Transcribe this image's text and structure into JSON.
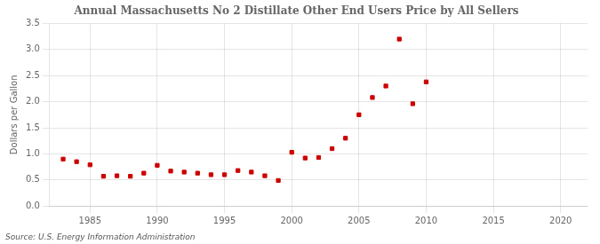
{
  "chart_data": {
    "type": "scatter",
    "title": "Annual Massachusetts No 2 Distillate Other End Users Price by All Sellers",
    "ylabel": "Dollars per Gallon",
    "annotation": "Source: U.S. Energy Information Administration",
    "color": "#cc0000",
    "marker": "square",
    "grid": true,
    "xlim": [
      1982,
      2022
    ],
    "ylim": [
      0.0,
      3.5
    ],
    "xticks": [
      1985,
      1990,
      1995,
      2000,
      2005,
      2010,
      2015,
      2020
    ],
    "yticks": [
      {
        "value": 0.0,
        "label": "0.0"
      },
      0.5,
      {
        "value": 1.0,
        "label": "1.0"
      },
      1.5,
      {
        "value": 2.0,
        "label": "2.0"
      },
      2.5,
      {
        "value": 3.0,
        "label": "3.0"
      },
      3.5
    ],
    "x": [
      1983,
      1984,
      1985,
      1986,
      1987,
      1988,
      1989,
      1990,
      1991,
      1992,
      1993,
      1994,
      1995,
      1996,
      1997,
      1998,
      1999,
      2000,
      2001,
      2002,
      2003,
      2004,
      2005,
      2006,
      2007,
      2008,
      2009,
      2010
    ],
    "values": [
      0.9,
      0.85,
      0.79,
      0.57,
      0.58,
      0.57,
      0.63,
      0.78,
      0.67,
      0.65,
      0.63,
      0.6,
      0.6,
      0.68,
      0.65,
      0.58,
      0.49,
      1.03,
      0.92,
      0.93,
      1.1,
      1.3,
      1.75,
      2.08,
      2.3,
      3.2,
      1.96,
      2.38
    ]
  }
}
